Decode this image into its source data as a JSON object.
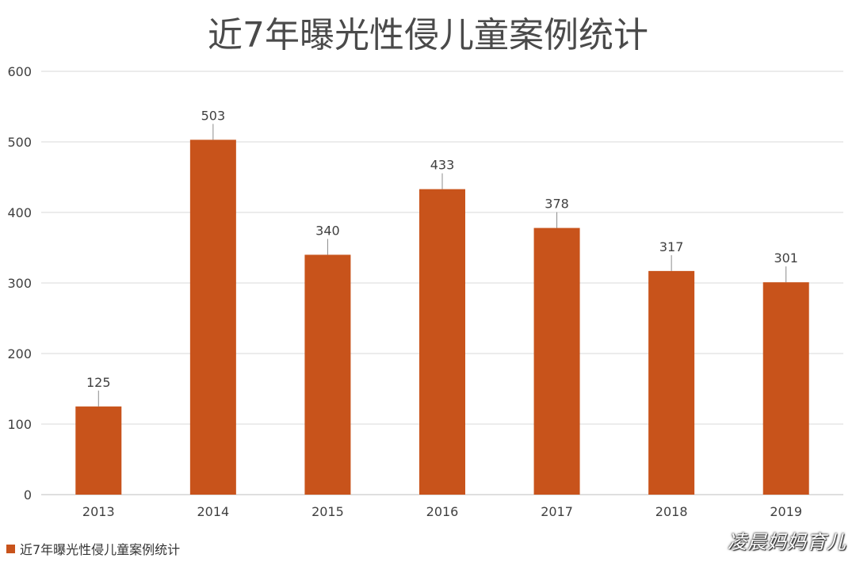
{
  "chart_data": {
    "type": "bar",
    "title": "近7年曝光性侵儿童案例统计",
    "categories": [
      "2013",
      "2014",
      "2015",
      "2016",
      "2017",
      "2018",
      "2019"
    ],
    "series": [
      {
        "name": "近7年曝光性侵儿童案例统计",
        "values": [
          125,
          503,
          340,
          433,
          378,
          317,
          301
        ],
        "color": "#c8531b"
      }
    ],
    "ylim": [
      0,
      600
    ],
    "yticks": [
      0,
      100,
      200,
      300,
      400,
      500,
      600
    ],
    "grid": true,
    "legend_position": "bottom-left",
    "data_labels": true
  },
  "watermark": "凌晨妈妈育儿",
  "colors": {
    "bar": "#c8531b",
    "grid": "#d9d9d9",
    "text": "#404040"
  }
}
